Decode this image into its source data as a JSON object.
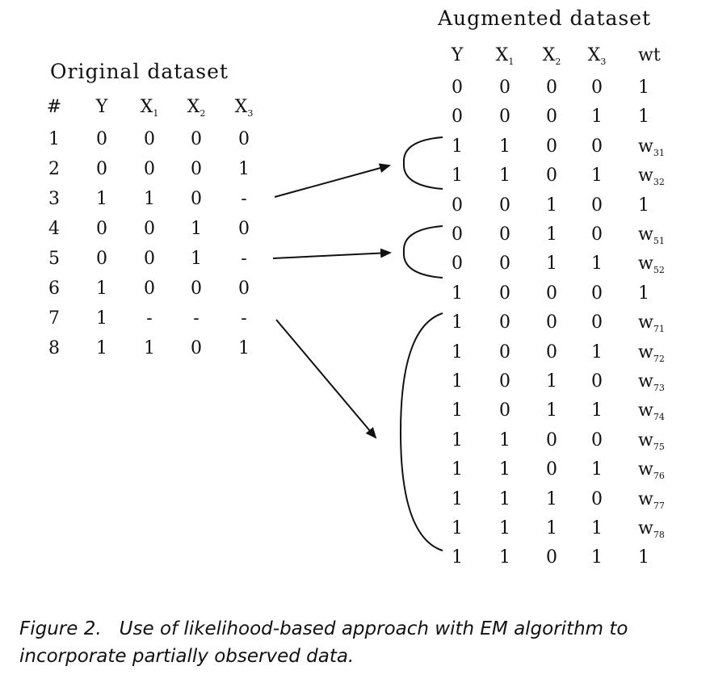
{
  "original": {
    "title": "Original dataset",
    "headers": [
      "#",
      "Y",
      "X1",
      "X2",
      "X3"
    ],
    "rows": [
      [
        "1",
        "0",
        "0",
        "0",
        "0"
      ],
      [
        "2",
        "0",
        "0",
        "0",
        "1"
      ],
      [
        "3",
        "1",
        "1",
        "0",
        "-"
      ],
      [
        "4",
        "0",
        "0",
        "1",
        "0"
      ],
      [
        "5",
        "0",
        "0",
        "1",
        "-"
      ],
      [
        "6",
        "1",
        "0",
        "0",
        "0"
      ],
      [
        "7",
        "1",
        "-",
        "-",
        "-"
      ],
      [
        "8",
        "1",
        "1",
        "0",
        "1"
      ]
    ]
  },
  "augmented": {
    "title": "Augmented dataset",
    "headers": [
      "Y",
      "X1",
      "X2",
      "X3",
      "wt"
    ],
    "rows": [
      [
        "0",
        "0",
        "0",
        "0",
        "1"
      ],
      [
        "0",
        "0",
        "0",
        "1",
        "1"
      ],
      [
        "1",
        "1",
        "0",
        "0",
        "w31"
      ],
      [
        "1",
        "1",
        "0",
        "1",
        "w32"
      ],
      [
        "0",
        "0",
        "1",
        "0",
        "1"
      ],
      [
        "0",
        "0",
        "1",
        "0",
        "w51"
      ],
      [
        "0",
        "0",
        "1",
        "1",
        "w52"
      ],
      [
        "1",
        "0",
        "0",
        "0",
        "1"
      ],
      [
        "1",
        "0",
        "0",
        "0",
        "w71"
      ],
      [
        "1",
        "0",
        "0",
        "1",
        "w72"
      ],
      [
        "1",
        "0",
        "1",
        "0",
        "w73"
      ],
      [
        "1",
        "0",
        "1",
        "1",
        "w74"
      ],
      [
        "1",
        "1",
        "0",
        "0",
        "w75"
      ],
      [
        "1",
        "1",
        "0",
        "1",
        "w76"
      ],
      [
        "1",
        "1",
        "1",
        "0",
        "w77"
      ],
      [
        "1",
        "1",
        "1",
        "1",
        "w78"
      ],
      [
        "1",
        "1",
        "0",
        "1",
        "1"
      ]
    ]
  },
  "caption": {
    "label": "Figure 2.",
    "text": "Use of likelihood-based approach with EM algorithm to incorporate partially observed data."
  }
}
